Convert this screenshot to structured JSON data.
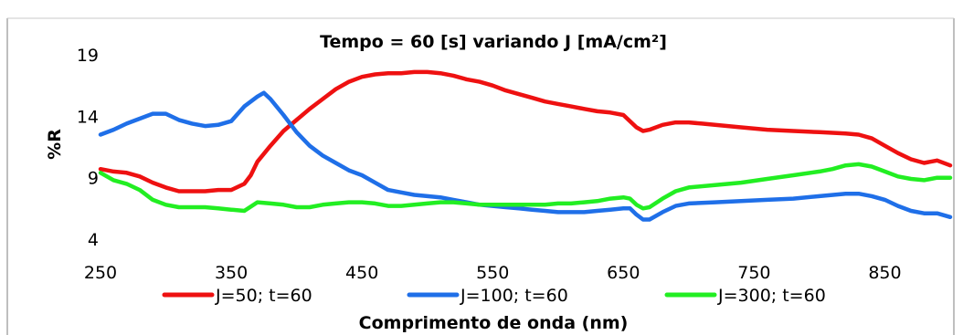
{
  "chart_data": {
    "type": "line",
    "title": "Tempo = 60 [s] variando J [mA/cm²]",
    "xlabel": "Comprimento de onda (nm)",
    "ylabel": "%R",
    "xlim": [
      250,
      900
    ],
    "ylim": [
      4,
      19
    ],
    "xticks": [
      250,
      350,
      450,
      550,
      650,
      750,
      850
    ],
    "xtick_labels": [
      "250",
      "350",
      "450",
      "550",
      "650",
      "750",
      "850"
    ],
    "yticks": [
      4,
      9,
      14,
      19
    ],
    "ytick_labels": [
      "4",
      "9",
      "14",
      "19"
    ],
    "grid": false,
    "legend_position": "bottom",
    "series": [
      {
        "name": "J=50; t=60",
        "color": "#ee1111",
        "points": [
          [
            250,
            9.7
          ],
          [
            260,
            9.5
          ],
          [
            270,
            9.4
          ],
          [
            280,
            9.1
          ],
          [
            290,
            8.6
          ],
          [
            300,
            8.2
          ],
          [
            310,
            7.9
          ],
          [
            320,
            7.9
          ],
          [
            330,
            7.9
          ],
          [
            340,
            8.0
          ],
          [
            350,
            8.0
          ],
          [
            360,
            8.5
          ],
          [
            365,
            9.2
          ],
          [
            370,
            10.3
          ],
          [
            380,
            11.6
          ],
          [
            390,
            12.8
          ],
          [
            400,
            13.7
          ],
          [
            410,
            14.6
          ],
          [
            420,
            15.4
          ],
          [
            430,
            16.2
          ],
          [
            440,
            16.8
          ],
          [
            450,
            17.2
          ],
          [
            460,
            17.4
          ],
          [
            470,
            17.5
          ],
          [
            480,
            17.5
          ],
          [
            490,
            17.6
          ],
          [
            500,
            17.6
          ],
          [
            510,
            17.5
          ],
          [
            520,
            17.3
          ],
          [
            530,
            17.0
          ],
          [
            540,
            16.8
          ],
          [
            550,
            16.5
          ],
          [
            560,
            16.1
          ],
          [
            570,
            15.8
          ],
          [
            580,
            15.5
          ],
          [
            590,
            15.2
          ],
          [
            600,
            15.0
          ],
          [
            610,
            14.8
          ],
          [
            620,
            14.6
          ],
          [
            630,
            14.4
          ],
          [
            640,
            14.3
          ],
          [
            650,
            14.1
          ],
          [
            660,
            13.1
          ],
          [
            665,
            12.8
          ],
          [
            670,
            12.9
          ],
          [
            680,
            13.3
          ],
          [
            690,
            13.5
          ],
          [
            700,
            13.5
          ],
          [
            710,
            13.4
          ],
          [
            720,
            13.3
          ],
          [
            740,
            13.1
          ],
          [
            760,
            12.9
          ],
          [
            780,
            12.8
          ],
          [
            800,
            12.7
          ],
          [
            820,
            12.6
          ],
          [
            830,
            12.5
          ],
          [
            840,
            12.2
          ],
          [
            850,
            11.6
          ],
          [
            860,
            11.0
          ],
          [
            870,
            10.5
          ],
          [
            880,
            10.2
          ],
          [
            890,
            10.4
          ],
          [
            900,
            10.0
          ]
        ]
      },
      {
        "name": "J=100; t=60",
        "color": "#1f6fe8",
        "points": [
          [
            250,
            12.5
          ],
          [
            260,
            12.9
          ],
          [
            270,
            13.4
          ],
          [
            280,
            13.8
          ],
          [
            290,
            14.2
          ],
          [
            300,
            14.2
          ],
          [
            310,
            13.7
          ],
          [
            320,
            13.4
          ],
          [
            330,
            13.2
          ],
          [
            340,
            13.3
          ],
          [
            350,
            13.6
          ],
          [
            360,
            14.8
          ],
          [
            370,
            15.6
          ],
          [
            375,
            15.9
          ],
          [
            380,
            15.4
          ],
          [
            390,
            14.1
          ],
          [
            400,
            12.7
          ],
          [
            410,
            11.6
          ],
          [
            420,
            10.8
          ],
          [
            430,
            10.2
          ],
          [
            440,
            9.6
          ],
          [
            450,
            9.2
          ],
          [
            460,
            8.6
          ],
          [
            470,
            8.0
          ],
          [
            480,
            7.8
          ],
          [
            490,
            7.6
          ],
          [
            500,
            7.5
          ],
          [
            510,
            7.4
          ],
          [
            520,
            7.2
          ],
          [
            530,
            7.0
          ],
          [
            540,
            6.8
          ],
          [
            550,
            6.7
          ],
          [
            560,
            6.6
          ],
          [
            570,
            6.5
          ],
          [
            580,
            6.4
          ],
          [
            590,
            6.3
          ],
          [
            600,
            6.2
          ],
          [
            610,
            6.2
          ],
          [
            620,
            6.2
          ],
          [
            630,
            6.3
          ],
          [
            640,
            6.4
          ],
          [
            650,
            6.5
          ],
          [
            655,
            6.5
          ],
          [
            660,
            6.0
          ],
          [
            665,
            5.6
          ],
          [
            670,
            5.6
          ],
          [
            680,
            6.2
          ],
          [
            690,
            6.7
          ],
          [
            700,
            6.9
          ],
          [
            720,
            7.0
          ],
          [
            740,
            7.1
          ],
          [
            760,
            7.2
          ],
          [
            780,
            7.3
          ],
          [
            800,
            7.5
          ],
          [
            820,
            7.7
          ],
          [
            830,
            7.7
          ],
          [
            840,
            7.5
          ],
          [
            850,
            7.2
          ],
          [
            860,
            6.7
          ],
          [
            870,
            6.3
          ],
          [
            880,
            6.1
          ],
          [
            890,
            6.1
          ],
          [
            900,
            5.8
          ]
        ]
      },
      {
        "name": "J=300; t=60",
        "color": "#22ee22",
        "points": [
          [
            250,
            9.4
          ],
          [
            260,
            8.8
          ],
          [
            270,
            8.5
          ],
          [
            280,
            8.0
          ],
          [
            290,
            7.2
          ],
          [
            300,
            6.8
          ],
          [
            310,
            6.6
          ],
          [
            320,
            6.6
          ],
          [
            330,
            6.6
          ],
          [
            340,
            6.5
          ],
          [
            350,
            6.4
          ],
          [
            360,
            6.3
          ],
          [
            370,
            7.0
          ],
          [
            380,
            6.9
          ],
          [
            390,
            6.8
          ],
          [
            400,
            6.6
          ],
          [
            410,
            6.6
          ],
          [
            420,
            6.8
          ],
          [
            430,
            6.9
          ],
          [
            440,
            7.0
          ],
          [
            450,
            7.0
          ],
          [
            460,
            6.9
          ],
          [
            470,
            6.7
          ],
          [
            480,
            6.7
          ],
          [
            490,
            6.8
          ],
          [
            500,
            6.9
          ],
          [
            510,
            7.0
          ],
          [
            520,
            7.0
          ],
          [
            530,
            6.9
          ],
          [
            540,
            6.8
          ],
          [
            550,
            6.8
          ],
          [
            560,
            6.8
          ],
          [
            570,
            6.8
          ],
          [
            580,
            6.8
          ],
          [
            590,
            6.8
          ],
          [
            600,
            6.9
          ],
          [
            610,
            6.9
          ],
          [
            620,
            7.0
          ],
          [
            630,
            7.1
          ],
          [
            640,
            7.3
          ],
          [
            650,
            7.4
          ],
          [
            655,
            7.3
          ],
          [
            660,
            6.8
          ],
          [
            665,
            6.5
          ],
          [
            670,
            6.6
          ],
          [
            680,
            7.3
          ],
          [
            690,
            7.9
          ],
          [
            700,
            8.2
          ],
          [
            720,
            8.4
          ],
          [
            740,
            8.6
          ],
          [
            760,
            8.9
          ],
          [
            780,
            9.2
          ],
          [
            800,
            9.5
          ],
          [
            810,
            9.7
          ],
          [
            820,
            10.0
          ],
          [
            830,
            10.1
          ],
          [
            840,
            9.9
          ],
          [
            850,
            9.5
          ],
          [
            860,
            9.1
          ],
          [
            870,
            8.9
          ],
          [
            880,
            8.8
          ],
          [
            890,
            9.0
          ],
          [
            900,
            9.0
          ]
        ]
      }
    ]
  }
}
